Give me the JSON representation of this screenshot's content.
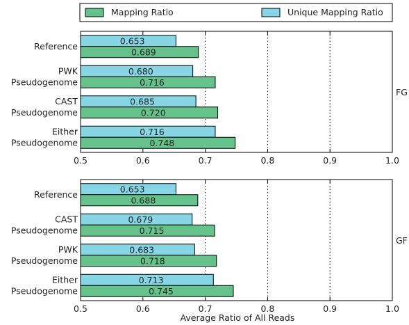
{
  "legend": {
    "items": [
      {
        "label": "Mapping Ratio",
        "color": "#66c28b"
      },
      {
        "label": "Unique Mapping Ratio",
        "color": "#87d6e6"
      }
    ]
  },
  "xlabel": "Average Ratio of All Reads",
  "chart_data": [
    {
      "type": "bar",
      "orientation": "horizontal",
      "panel_label": "FG",
      "categories": [
        [
          "Reference"
        ],
        [
          "PWK",
          "Pseudogenome"
        ],
        [
          "CAST",
          "Pseudogenome"
        ],
        [
          "Either",
          "Pseudogenome"
        ]
      ],
      "series": [
        {
          "name": "Unique Mapping Ratio",
          "values": [
            0.653,
            0.68,
            0.685,
            0.716
          ],
          "labels": [
            "0.653",
            "0.680",
            "0.685",
            "0.716"
          ]
        },
        {
          "name": "Mapping Ratio",
          "values": [
            0.689,
            0.716,
            0.72,
            0.748
          ],
          "labels": [
            "0.689",
            "0.716",
            "0.720",
            "0.748"
          ]
        }
      ],
      "xlim": [
        0.5,
        1.0
      ],
      "xticks": [
        "0.5",
        "0.6",
        "0.7",
        "0.8",
        "0.9",
        "1.0"
      ],
      "gridlines": [
        0.7,
        0.8,
        0.9
      ],
      "grid": "dotted vertical"
    },
    {
      "type": "bar",
      "orientation": "horizontal",
      "panel_label": "GF",
      "categories": [
        [
          "Reference"
        ],
        [
          "CAST",
          "Pseudogenome"
        ],
        [
          "PWK",
          "Pseudogenome"
        ],
        [
          "Either",
          "Pseudogenome"
        ]
      ],
      "series": [
        {
          "name": "Unique Mapping Ratio",
          "values": [
            0.653,
            0.679,
            0.683,
            0.713
          ],
          "labels": [
            "0.653",
            "0.679",
            "0.683",
            "0.713"
          ]
        },
        {
          "name": "Mapping Ratio",
          "values": [
            0.688,
            0.715,
            0.718,
            0.745
          ],
          "labels": [
            "0.688",
            "0.715",
            "0.718",
            "0.745"
          ]
        }
      ],
      "xlim": [
        0.5,
        1.0
      ],
      "xticks": [
        "0.5",
        "0.6",
        "0.7",
        "0.8",
        "0.9",
        "1.0"
      ],
      "gridlines": [
        0.7,
        0.8,
        0.9
      ],
      "grid": "dotted vertical"
    }
  ]
}
